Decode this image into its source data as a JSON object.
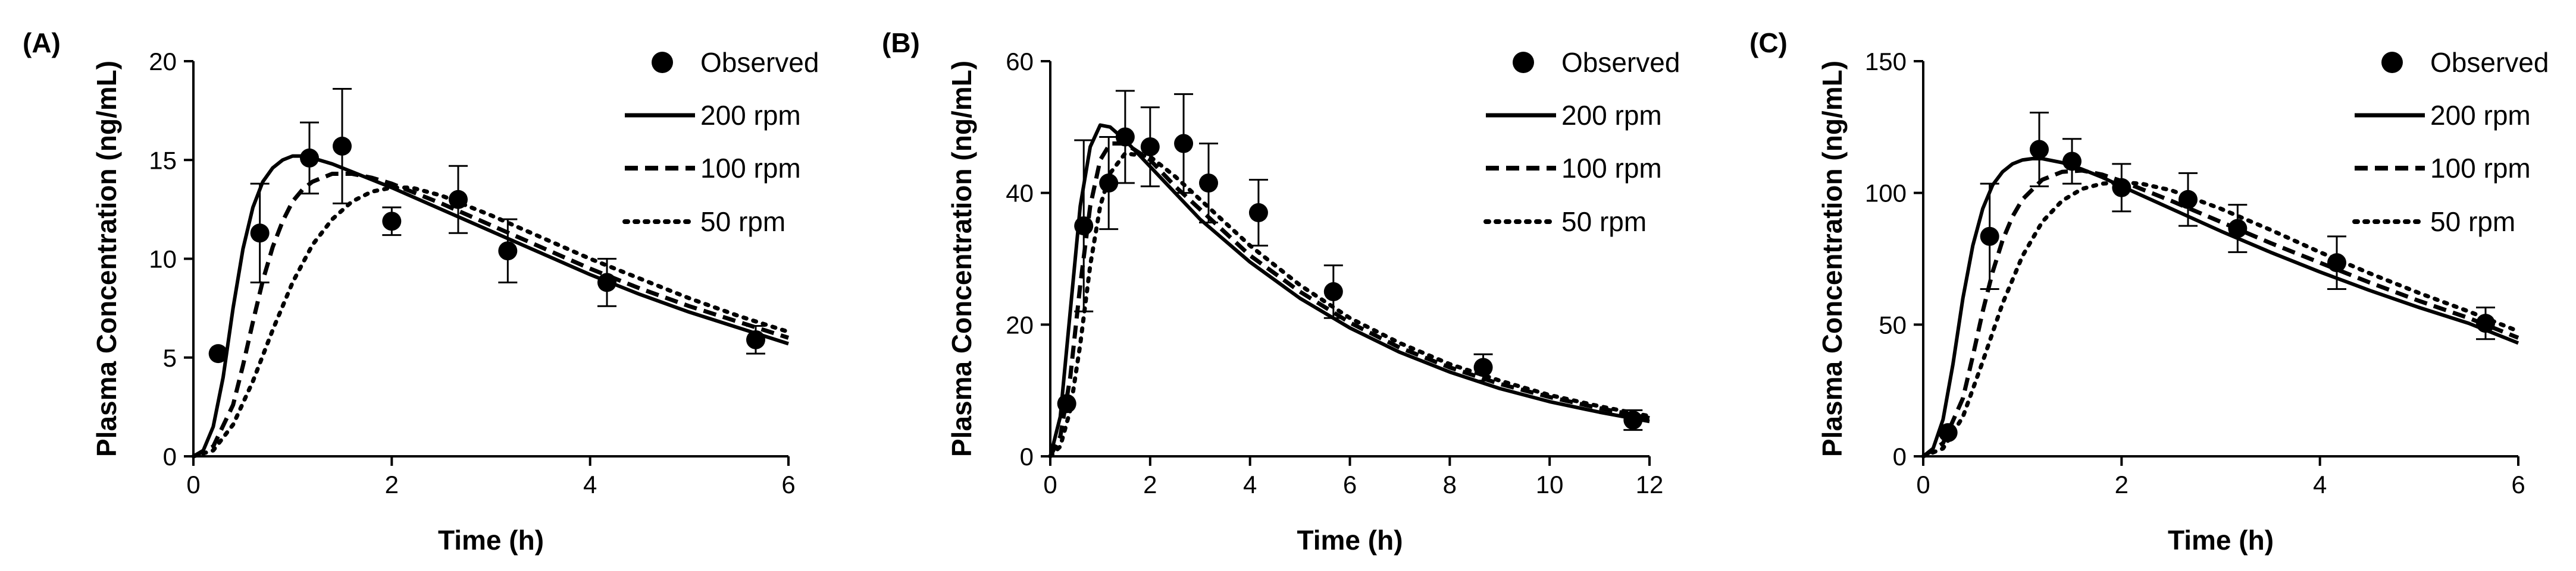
{
  "chart_data": [
    {
      "type": "line",
      "panel_label": "(A)",
      "xlabel": "Time (h)",
      "ylabel": "Plasma Concentration (ng/mL)",
      "xlim": [
        0,
        6
      ],
      "ylim": [
        0,
        20
      ],
      "xticks": [
        0,
        2,
        4,
        6
      ],
      "yticks": [
        0,
        5,
        10,
        15,
        20
      ],
      "legend": {
        "position": "top-right",
        "entries": [
          "Observed",
          "200 rpm",
          "100 rpm",
          "50 rpm"
        ]
      },
      "observed": [
        {
          "x": 0.25,
          "y": 5.2,
          "err": 0
        },
        {
          "x": 0.67,
          "y": 11.3,
          "err": 2.5
        },
        {
          "x": 1.17,
          "y": 15.1,
          "err": 1.8
        },
        {
          "x": 1.5,
          "y": 15.7,
          "err": 2.9
        },
        {
          "x": 2.0,
          "y": 11.9,
          "err": 0.7
        },
        {
          "x": 2.67,
          "y": 13.0,
          "err": 1.7
        },
        {
          "x": 3.17,
          "y": 10.4,
          "err": 1.6
        },
        {
          "x": 4.17,
          "y": 8.8,
          "err": 1.2
        },
        {
          "x": 5.67,
          "y": 5.9,
          "err": 0.7
        }
      ],
      "series": [
        {
          "name": "200 rpm",
          "style": "solid",
          "x": [
            0,
            0.1,
            0.2,
            0.3,
            0.4,
            0.5,
            0.6,
            0.7,
            0.8,
            0.9,
            1.0,
            1.1,
            1.2,
            1.4,
            1.6,
            1.8,
            2.0,
            2.5,
            3.0,
            3.5,
            4.0,
            4.5,
            5.0,
            5.5,
            6.0
          ],
          "y": [
            0,
            0.3,
            1.5,
            4.0,
            7.5,
            10.5,
            12.6,
            13.9,
            14.6,
            15.0,
            15.2,
            15.2,
            15.1,
            14.8,
            14.4,
            14.0,
            13.6,
            12.5,
            11.4,
            10.3,
            9.2,
            8.2,
            7.3,
            6.5,
            5.7
          ]
        },
        {
          "name": "100 rpm",
          "style": "dashed",
          "x": [
            0,
            0.2,
            0.4,
            0.5,
            0.6,
            0.7,
            0.8,
            0.9,
            1.0,
            1.1,
            1.2,
            1.4,
            1.6,
            1.8,
            2.0,
            2.5,
            3.0,
            3.5,
            4.0,
            4.5,
            5.0,
            5.5,
            6.0
          ],
          "y": [
            0,
            0.5,
            2.6,
            4.6,
            6.8,
            8.9,
            10.6,
            11.9,
            12.9,
            13.5,
            13.9,
            14.3,
            14.3,
            14.1,
            13.8,
            12.8,
            11.7,
            10.6,
            9.5,
            8.5,
            7.6,
            6.8,
            6.0
          ]
        },
        {
          "name": "50 rpm",
          "style": "dotted",
          "x": [
            0,
            0.2,
            0.4,
            0.6,
            0.8,
            1.0,
            1.2,
            1.4,
            1.6,
            1.8,
            2.0,
            2.2,
            2.5,
            3.0,
            3.5,
            4.0,
            4.5,
            5.0,
            5.5,
            6.0
          ],
          "y": [
            0,
            0.3,
            1.6,
            3.8,
            6.4,
            8.8,
            10.7,
            12.0,
            12.9,
            13.4,
            13.6,
            13.6,
            13.2,
            12.2,
            11.1,
            10.0,
            9.0,
            8.0,
            7.1,
            6.3
          ]
        }
      ]
    },
    {
      "type": "line",
      "panel_label": "(B)",
      "xlabel": "Time (h)",
      "ylabel": "Plasma Concentration (ng/mL)",
      "xlim": [
        0,
        12
      ],
      "ylim": [
        0,
        60
      ],
      "xticks": [
        0,
        2,
        4,
        6,
        8,
        10,
        12
      ],
      "yticks": [
        0,
        20,
        40,
        60
      ],
      "legend": {
        "position": "top-right",
        "entries": [
          "Observed",
          "200 rpm",
          "100 rpm",
          "50 rpm"
        ]
      },
      "observed": [
        {
          "x": 0.33,
          "y": 8.0,
          "err": 0
        },
        {
          "x": 0.67,
          "y": 35.0,
          "err": 13.0
        },
        {
          "x": 1.17,
          "y": 41.5,
          "err": 7.0
        },
        {
          "x": 1.5,
          "y": 48.5,
          "err": 7.0
        },
        {
          "x": 2.0,
          "y": 47.0,
          "err": 6.0
        },
        {
          "x": 2.67,
          "y": 47.5,
          "err": 7.5
        },
        {
          "x": 3.17,
          "y": 41.5,
          "err": 6.0
        },
        {
          "x": 4.17,
          "y": 37.0,
          "err": 5.0
        },
        {
          "x": 5.67,
          "y": 25.0,
          "err": 4.0
        },
        {
          "x": 8.67,
          "y": 13.5,
          "err": 2.0
        },
        {
          "x": 11.67,
          "y": 5.5,
          "err": 1.5
        }
      ],
      "series": [
        {
          "name": "200 rpm",
          "style": "solid",
          "x": [
            0,
            0.2,
            0.4,
            0.6,
            0.8,
            1.0,
            1.2,
            1.5,
            2.0,
            2.5,
            3.0,
            4.0,
            5.0,
            6.0,
            7.0,
            8.0,
            9.0,
            10.0,
            11.0,
            12.0
          ],
          "y": [
            0,
            6,
            22,
            38,
            47,
            50.3,
            50,
            48,
            44,
            40,
            36,
            29.5,
            24,
            19.5,
            15.8,
            12.8,
            10.3,
            8.3,
            6.7,
            5.3
          ]
        },
        {
          "name": "100 rpm",
          "style": "dashed",
          "x": [
            0,
            0.2,
            0.4,
            0.6,
            0.8,
            1.0,
            1.2,
            1.5,
            2.0,
            2.5,
            3.0,
            4.0,
            5.0,
            6.0,
            7.0,
            8.0,
            9.0,
            10.0,
            11.0,
            12.0
          ],
          "y": [
            0,
            3,
            12,
            26,
            38,
            45,
            47.5,
            47.5,
            45,
            41,
            37.5,
            30.5,
            25,
            20.3,
            16.5,
            13.5,
            11,
            9,
            7.3,
            5.8
          ]
        },
        {
          "name": "50 rpm",
          "style": "dotted",
          "x": [
            0,
            0.2,
            0.4,
            0.6,
            0.8,
            1.0,
            1.2,
            1.5,
            2.0,
            2.5,
            3.0,
            4.0,
            5.0,
            6.0,
            7.0,
            8.0,
            9.0,
            10.0,
            11.0,
            12.0
          ],
          "y": [
            0,
            1.5,
            7,
            17,
            29,
            38,
            43,
            46,
            45.5,
            42.5,
            39,
            32,
            26,
            21,
            17.2,
            14,
            11.5,
            9.3,
            7.6,
            6.1
          ]
        }
      ]
    },
    {
      "type": "line",
      "panel_label": "(C)",
      "xlabel": "Time (h)",
      "ylabel": "Plasma Concentration (ng/mL)",
      "xlim": [
        0,
        6
      ],
      "ylim": [
        0,
        150
      ],
      "xticks": [
        0,
        2,
        4,
        6
      ],
      "yticks": [
        0,
        50,
        100,
        150
      ],
      "legend": {
        "position": "top-right",
        "entries": [
          "Observed",
          "200 rpm",
          "100 rpm",
          "50 rpm"
        ]
      },
      "observed": [
        {
          "x": 0.25,
          "y": 9.0,
          "err": 0
        },
        {
          "x": 0.67,
          "y": 83.5,
          "err": 20.0
        },
        {
          "x": 1.17,
          "y": 116.5,
          "err": 14.0
        },
        {
          "x": 1.5,
          "y": 112.0,
          "err": 8.5
        },
        {
          "x": 2.0,
          "y": 102.0,
          "err": 9.0
        },
        {
          "x": 2.67,
          "y": 97.5,
          "err": 10.0
        },
        {
          "x": 3.17,
          "y": 86.5,
          "err": 9.0
        },
        {
          "x": 4.17,
          "y": 73.5,
          "err": 10.0
        },
        {
          "x": 5.67,
          "y": 50.5,
          "err": 6.0
        }
      ],
      "series": [
        {
          "name": "200 rpm",
          "style": "solid",
          "x": [
            0,
            0.1,
            0.2,
            0.3,
            0.4,
            0.5,
            0.6,
            0.7,
            0.8,
            0.9,
            1.0,
            1.1,
            1.2,
            1.4,
            1.6,
            1.8,
            2.0,
            2.5,
            3.0,
            3.5,
            4.0,
            4.5,
            5.0,
            5.5,
            6.0
          ],
          "y": [
            0,
            3,
            14,
            35,
            60,
            80,
            94,
            103,
            108,
            111,
            112.5,
            113,
            113,
            111.5,
            109,
            106,
            102.5,
            94,
            85.5,
            77.5,
            70,
            63,
            56.5,
            50.5,
            43
          ]
        },
        {
          "name": "100 rpm",
          "style": "dashed",
          "x": [
            0,
            0.2,
            0.4,
            0.5,
            0.6,
            0.7,
            0.8,
            0.9,
            1.0,
            1.2,
            1.4,
            1.6,
            1.8,
            2.0,
            2.5,
            3.0,
            3.5,
            4.0,
            4.5,
            5.0,
            5.5,
            6.0
          ],
          "y": [
            0,
            5,
            22,
            38,
            55,
            70,
            82,
            91,
            97.5,
            105,
            108,
            108.5,
            107,
            104.5,
            97,
            89,
            81,
            73.5,
            66,
            59,
            52.5,
            45
          ]
        },
        {
          "name": "50 rpm",
          "style": "dotted",
          "x": [
            0,
            0.2,
            0.4,
            0.6,
            0.8,
            1.0,
            1.2,
            1.4,
            1.6,
            1.8,
            2.0,
            2.2,
            2.5,
            3.0,
            3.5,
            4.0,
            4.5,
            5.0,
            5.5,
            6.0
          ],
          "y": [
            0,
            3,
            15,
            36,
            58,
            76,
            89,
            97,
            101.5,
            103.5,
            104,
            103.5,
            101,
            94,
            86,
            77.5,
            69.5,
            62,
            55,
            47.5
          ]
        }
      ]
    }
  ]
}
